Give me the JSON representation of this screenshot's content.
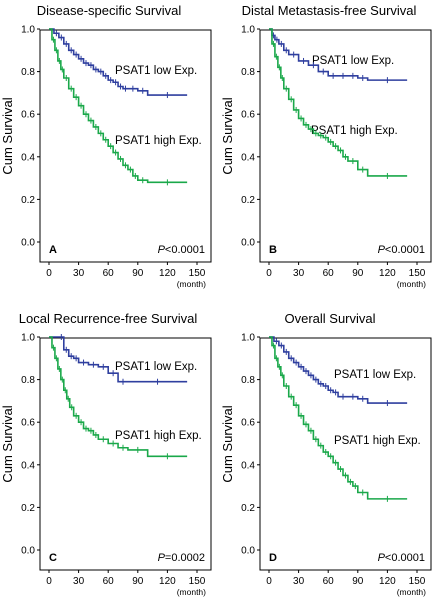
{
  "colors": {
    "low": "#2f3f9f",
    "high": "#1aa84a"
  },
  "chart_data": [
    {
      "type": "line",
      "title": "Disease-specific Survival",
      "xlabel": "(month)",
      "ylabel": "Cum Survival",
      "xticks": [
        "0",
        "30",
        "60",
        "90",
        "120",
        "150"
      ],
      "yticks": [
        "0.0",
        "0.2",
        "0.4",
        "0.6",
        "0.8",
        "1.0"
      ],
      "xlim": [
        0,
        150
      ],
      "ylim": [
        0,
        1.0
      ],
      "panel_label": "A",
      "pvalue_prefix": "P",
      "pvalue_value": "<0.0001",
      "series": [
        {
          "name": "PSAT1 low Exp.",
          "color_key": "low",
          "x": [
            0,
            5,
            10,
            15,
            20,
            25,
            30,
            35,
            40,
            45,
            50,
            55,
            60,
            65,
            70,
            75,
            80,
            90,
            100,
            140
          ],
          "y": [
            1.0,
            0.98,
            0.96,
            0.93,
            0.9,
            0.88,
            0.86,
            0.84,
            0.83,
            0.81,
            0.8,
            0.78,
            0.76,
            0.75,
            0.73,
            0.72,
            0.72,
            0.71,
            0.69,
            0.69
          ]
        },
        {
          "name": "PSAT1 high Exp.",
          "color_key": "high",
          "x": [
            0,
            3,
            6,
            9,
            12,
            15,
            20,
            25,
            30,
            35,
            40,
            45,
            50,
            55,
            60,
            65,
            70,
            75,
            80,
            85,
            90,
            100,
            140
          ],
          "y": [
            1.0,
            0.95,
            0.9,
            0.85,
            0.81,
            0.77,
            0.72,
            0.68,
            0.64,
            0.6,
            0.57,
            0.54,
            0.51,
            0.48,
            0.45,
            0.42,
            0.39,
            0.36,
            0.34,
            0.31,
            0.29,
            0.28,
            0.28
          ]
        }
      ]
    },
    {
      "type": "line",
      "title": "Distal Metastasis-free Survival",
      "xlabel": "(month)",
      "ylabel": "Cum Survival",
      "xticks": [
        "0",
        "30",
        "60",
        "90",
        "120",
        "150"
      ],
      "yticks": [
        "0.0",
        "0.2",
        "0.4",
        "0.6",
        "0.8",
        "1.0"
      ],
      "xlim": [
        0,
        150
      ],
      "ylim": [
        0,
        1.0
      ],
      "panel_label": "B",
      "pvalue_prefix": "P",
      "pvalue_value": "<0.0001",
      "series": [
        {
          "name": "PSAT1 low Exp.",
          "color_key": "low",
          "x": [
            0,
            3,
            6,
            10,
            15,
            20,
            30,
            40,
            50,
            60,
            70,
            80,
            90,
            100,
            140
          ],
          "y": [
            1.0,
            0.97,
            0.95,
            0.93,
            0.9,
            0.88,
            0.85,
            0.83,
            0.8,
            0.78,
            0.78,
            0.78,
            0.77,
            0.76,
            0.76
          ]
        },
        {
          "name": "PSAT1 high Exp.",
          "color_key": "high",
          "x": [
            0,
            3,
            6,
            9,
            12,
            15,
            20,
            25,
            30,
            35,
            40,
            45,
            50,
            55,
            60,
            65,
            70,
            75,
            80,
            90,
            100,
            140
          ],
          "y": [
            1.0,
            0.93,
            0.87,
            0.82,
            0.77,
            0.72,
            0.67,
            0.62,
            0.58,
            0.55,
            0.53,
            0.51,
            0.5,
            0.49,
            0.47,
            0.45,
            0.43,
            0.4,
            0.38,
            0.34,
            0.31,
            0.31
          ]
        }
      ]
    },
    {
      "type": "line",
      "title": "Local Recurrence-free Survival",
      "xlabel": "(month)",
      "ylabel": "Cum Survival",
      "xticks": [
        "0",
        "30",
        "60",
        "90",
        "120",
        "150"
      ],
      "yticks": [
        "0.0",
        "0.2",
        "0.4",
        "0.6",
        "0.8",
        "1.0"
      ],
      "xlim": [
        0,
        150
      ],
      "ylim": [
        0,
        1.0
      ],
      "panel_label": "C",
      "pvalue_prefix": "P",
      "pvalue_value": "=0.0002",
      "series": [
        {
          "name": "PSAT1 low Exp.",
          "color_key": "low",
          "x": [
            0,
            10,
            15,
            20,
            25,
            30,
            40,
            50,
            60,
            70,
            80,
            140
          ],
          "y": [
            1.0,
            1.0,
            0.94,
            0.91,
            0.9,
            0.88,
            0.87,
            0.86,
            0.83,
            0.79,
            0.79,
            0.79
          ]
        },
        {
          "name": "PSAT1 high Exp.",
          "color_key": "high",
          "x": [
            0,
            3,
            6,
            9,
            12,
            15,
            18,
            21,
            25,
            30,
            35,
            40,
            45,
            50,
            60,
            70,
            80,
            100,
            140
          ],
          "y": [
            1.0,
            0.95,
            0.9,
            0.85,
            0.8,
            0.75,
            0.71,
            0.67,
            0.63,
            0.6,
            0.57,
            0.56,
            0.54,
            0.52,
            0.5,
            0.48,
            0.47,
            0.44,
            0.44
          ]
        }
      ]
    },
    {
      "type": "line",
      "title": "Overall Survival",
      "xlabel": "(month)",
      "ylabel": "Cum Survival",
      "xticks": [
        "0",
        "30",
        "60",
        "90",
        "120",
        "150"
      ],
      "yticks": [
        "0.0",
        "0.2",
        "0.4",
        "0.6",
        "0.8",
        "1.0"
      ],
      "xlim": [
        0,
        150
      ],
      "ylim": [
        0,
        1.0
      ],
      "panel_label": "D",
      "pvalue_prefix": "P",
      "pvalue_value": "<0.0001",
      "series": [
        {
          "name": "PSAT1 low Exp.",
          "color_key": "low",
          "x": [
            0,
            5,
            10,
            15,
            20,
            25,
            30,
            35,
            40,
            45,
            50,
            55,
            60,
            65,
            70,
            80,
            90,
            100,
            140
          ],
          "y": [
            1.0,
            0.98,
            0.96,
            0.93,
            0.9,
            0.88,
            0.86,
            0.84,
            0.82,
            0.8,
            0.78,
            0.77,
            0.75,
            0.74,
            0.72,
            0.72,
            0.71,
            0.69,
            0.69
          ]
        },
        {
          "name": "PSAT1 high Exp.",
          "color_key": "high",
          "x": [
            0,
            3,
            6,
            9,
            12,
            15,
            20,
            25,
            30,
            35,
            40,
            45,
            50,
            55,
            60,
            65,
            70,
            75,
            80,
            85,
            90,
            100,
            140
          ],
          "y": [
            1.0,
            0.96,
            0.9,
            0.86,
            0.82,
            0.77,
            0.72,
            0.68,
            0.63,
            0.59,
            0.56,
            0.52,
            0.49,
            0.46,
            0.44,
            0.41,
            0.38,
            0.35,
            0.32,
            0.3,
            0.27,
            0.24,
            0.24
          ]
        }
      ]
    }
  ]
}
